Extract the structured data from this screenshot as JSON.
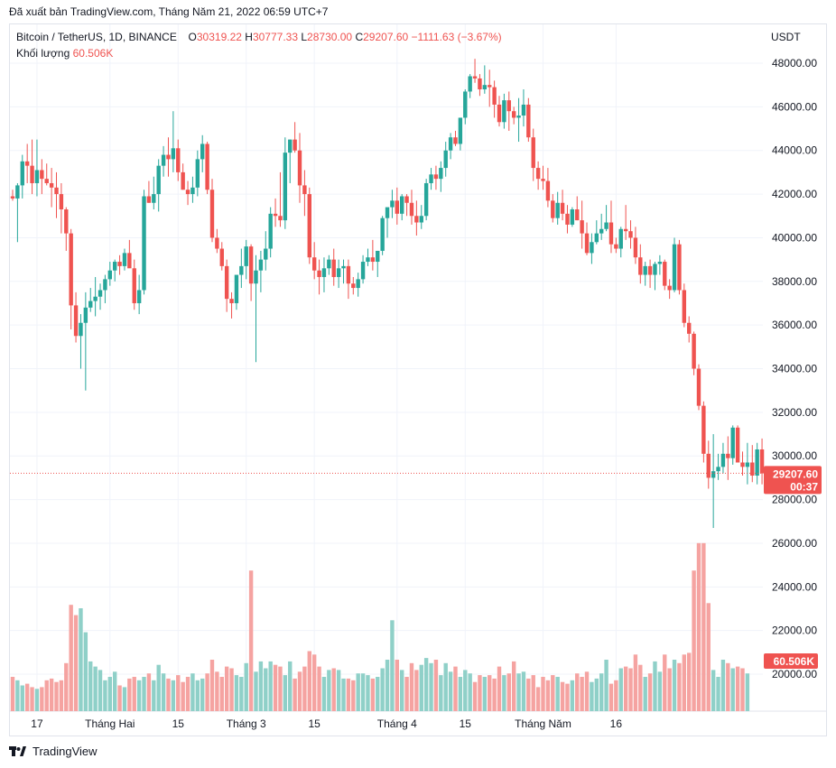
{
  "header": {
    "published": "Đã xuất bản TradingView.com, Tháng Năm 21, 2022 06:59 UTC+7"
  },
  "legend": {
    "symbol": "Bitcoin / TetherUS, 1D, BINANCE",
    "open_label": "O",
    "open": "30319.22",
    "high_label": "H",
    "high": "30777.33",
    "low_label": "L",
    "low": "28730.00",
    "close_label": "C",
    "close": "29207.60",
    "change": "−1111.63 (−3.67%)",
    "volume_label": "Khối lượng",
    "volume": "60.506K"
  },
  "footer": {
    "brand": "TradingView"
  },
  "colors": {
    "up": "#26a69a",
    "down": "#ef5350",
    "vol_up": "#8fd0c8",
    "vol_down": "#f5a3a1",
    "grid": "#f0f3fa",
    "text": "#131722"
  },
  "chart_data": {
    "type": "candlestick",
    "currency": "USDT",
    "price_axis_ticks": [
      "48000.00",
      "46000.00",
      "44000.00",
      "42000.00",
      "40000.00",
      "38000.00",
      "36000.00",
      "34000.00",
      "32000.00",
      "30000.00",
      "28000.00",
      "26000.00",
      "24000.00",
      "22000.00",
      "20000.00"
    ],
    "ylim": [
      19400,
      49600
    ],
    "x_ticks": [
      {
        "label": "17",
        "index": 5
      },
      {
        "label": "Tháng Hai",
        "index": 20
      },
      {
        "label": "15",
        "index": 34
      },
      {
        "label": "Tháng 3",
        "index": 48
      },
      {
        "label": "15",
        "index": 62
      },
      {
        "label": "Tháng 4",
        "index": 79
      },
      {
        "label": "15",
        "index": 93
      },
      {
        "label": "Tháng Năm",
        "index": 109
      },
      {
        "label": "16",
        "index": 124
      }
    ],
    "last_price": {
      "value": "29207.60",
      "countdown": "00:37",
      "y": 29207.6
    },
    "last_volume": {
      "value": "60.506K"
    },
    "ohlc": [
      [
        41900,
        42200,
        41700,
        41800
      ],
      [
        41800,
        42500,
        39800,
        42400
      ],
      [
        42400,
        43800,
        41800,
        43500
      ],
      [
        43500,
        44300,
        42500,
        43300
      ],
      [
        43300,
        44500,
        42000,
        42500
      ],
      [
        42500,
        44500,
        41900,
        43100
      ],
      [
        43100,
        43600,
        42000,
        42700
      ],
      [
        42700,
        43400,
        42400,
        42500
      ],
      [
        42500,
        43200,
        41400,
        42300
      ],
      [
        42300,
        43000,
        40900,
        42000
      ],
      [
        42000,
        42500,
        40200,
        41300
      ],
      [
        41300,
        41400,
        39400,
        40200
      ],
      [
        40200,
        40400,
        35800,
        36900
      ],
      [
        36900,
        37500,
        35200,
        35500
      ],
      [
        35500,
        36500,
        34000,
        36100
      ],
      [
        36100,
        37500,
        33000,
        36800
      ],
      [
        36800,
        37700,
        36600,
        37100
      ],
      [
        37100,
        38200,
        36400,
        37300
      ],
      [
        37300,
        37900,
        36700,
        37600
      ],
      [
        37600,
        38300,
        37000,
        38100
      ],
      [
        38100,
        38900,
        37800,
        38500
      ],
      [
        38500,
        39000,
        38000,
        38900
      ],
      [
        38900,
        39200,
        38300,
        38700
      ],
      [
        38700,
        39500,
        38500,
        39300
      ],
      [
        39300,
        39900,
        38800,
        38600
      ],
      [
        38600,
        39000,
        36700,
        37000
      ],
      [
        37000,
        38300,
        36500,
        37600
      ],
      [
        37600,
        42200,
        37400,
        41900
      ],
      [
        41900,
        42600,
        41600,
        41600
      ],
      [
        41600,
        42800,
        41300,
        42000
      ],
      [
        42000,
        43600,
        41200,
        43300
      ],
      [
        43300,
        44200,
        42800,
        43800
      ],
      [
        43800,
        44600,
        42800,
        43600
      ],
      [
        43600,
        45800,
        43000,
        44100
      ],
      [
        44100,
        44500,
        42600,
        43000
      ],
      [
        43000,
        43400,
        42200,
        42200
      ],
      [
        42200,
        42600,
        41500,
        42000
      ],
      [
        42000,
        42800,
        41600,
        42300
      ],
      [
        42300,
        44000,
        41900,
        43600
      ],
      [
        43600,
        44700,
        43000,
        44300
      ],
      [
        44300,
        44400,
        42000,
        42200
      ],
      [
        42200,
        42700,
        39800,
        40000
      ],
      [
        40000,
        40400,
        39300,
        39500
      ],
      [
        39500,
        39800,
        38500,
        38700
      ],
      [
        38700,
        39000,
        36600,
        37200
      ],
      [
        37200,
        37500,
        36300,
        37000
      ],
      [
        37000,
        38200,
        36700,
        38300
      ],
      [
        38300,
        39500,
        37700,
        38700
      ],
      [
        38700,
        39900,
        38100,
        39600
      ],
      [
        39600,
        39700,
        37100,
        37900
      ],
      [
        37900,
        39200,
        34300,
        38500
      ],
      [
        38500,
        39400,
        37500,
        39000
      ],
      [
        39000,
        40300,
        38500,
        39500
      ],
      [
        39500,
        41400,
        39100,
        41100
      ],
      [
        41100,
        41800,
        40500,
        41000
      ],
      [
        41000,
        43000,
        40500,
        40800
      ],
      [
        40800,
        44600,
        40400,
        43900
      ],
      [
        43900,
        44500,
        42500,
        44500
      ],
      [
        44500,
        45300,
        43900,
        44000
      ],
      [
        44000,
        44800,
        41600,
        42400
      ],
      [
        42400,
        43100,
        41000,
        42000
      ],
      [
        42000,
        42300,
        38800,
        39100
      ],
      [
        39100,
        39800,
        38100,
        38500
      ],
      [
        38500,
        39000,
        37400,
        38200
      ],
      [
        38200,
        39100,
        37500,
        38600
      ],
      [
        38600,
        39200,
        38300,
        39000
      ],
      [
        39000,
        39500,
        37800,
        38200
      ],
      [
        38200,
        39000,
        37700,
        38600
      ],
      [
        38600,
        39000,
        37900,
        38700
      ],
      [
        38700,
        39000,
        37200,
        37900
      ],
      [
        37900,
        38200,
        37400,
        37700
      ],
      [
        37700,
        38400,
        37300,
        38100
      ],
      [
        38100,
        39200,
        37900,
        38900
      ],
      [
        38900,
        39500,
        38700,
        39100
      ],
      [
        39100,
        39900,
        38500,
        38900
      ],
      [
        38900,
        39400,
        38200,
        39400
      ],
      [
        39400,
        41000,
        39200,
        40900
      ],
      [
        40900,
        41300,
        40000,
        41400
      ],
      [
        41400,
        42200,
        40900,
        41700
      ],
      [
        41700,
        42300,
        40600,
        41100
      ],
      [
        41100,
        42000,
        40800,
        41900
      ],
      [
        41900,
        42000,
        41000,
        41600
      ],
      [
        41600,
        42200,
        40600,
        41000
      ],
      [
        41000,
        41700,
        40100,
        40700
      ],
      [
        40700,
        41500,
        40400,
        41000
      ],
      [
        41000,
        42700,
        40800,
        42500
      ],
      [
        42500,
        43200,
        42200,
        42900
      ],
      [
        42900,
        43300,
        42200,
        42700
      ],
      [
        42700,
        43500,
        42100,
        43200
      ],
      [
        43200,
        44400,
        42800,
        44000
      ],
      [
        44000,
        44800,
        43600,
        44600
      ],
      [
        44600,
        44900,
        44200,
        44300
      ],
      [
        44300,
        45500,
        44000,
        45500
      ],
      [
        45500,
        46800,
        45200,
        46700
      ],
      [
        46700,
        47500,
        46400,
        47400
      ],
      [
        47400,
        48200,
        47100,
        47300
      ],
      [
        47300,
        47500,
        46500,
        46800
      ],
      [
        46800,
        47900,
        46600,
        47000
      ],
      [
        47000,
        47700,
        46000,
        46900
      ],
      [
        46900,
        47200,
        45500,
        46100
      ],
      [
        46100,
        46500,
        45100,
        45300
      ],
      [
        45300,
        46600,
        45000,
        46300
      ],
      [
        46300,
        46700,
        44900,
        45800
      ],
      [
        45800,
        46000,
        45200,
        45500
      ],
      [
        45500,
        46400,
        44400,
        45600
      ],
      [
        45600,
        46800,
        45100,
        46100
      ],
      [
        46100,
        46400,
        44400,
        44600
      ],
      [
        44600,
        45000,
        42600,
        43200
      ],
      [
        43200,
        43500,
        42200,
        42700
      ],
      [
        42700,
        43300,
        42200,
        42600
      ],
      [
        42600,
        43200,
        41400,
        41700
      ],
      [
        41700,
        42000,
        40700,
        40900
      ],
      [
        40900,
        42100,
        40600,
        41600
      ],
      [
        41600,
        42200,
        40800,
        41100
      ],
      [
        41100,
        41500,
        40200,
        40600
      ],
      [
        40600,
        41400,
        40500,
        41300
      ],
      [
        41300,
        41900,
        40800,
        40800
      ],
      [
        40800,
        41700,
        39500,
        40200
      ],
      [
        40200,
        40700,
        39200,
        39300
      ],
      [
        39300,
        40200,
        38800,
        39800
      ],
      [
        39800,
        40800,
        39700,
        40200
      ],
      [
        40200,
        41100,
        39900,
        40400
      ],
      [
        40400,
        41500,
        40300,
        40700
      ],
      [
        40700,
        41700,
        39300,
        39700
      ],
      [
        39700,
        40000,
        39300,
        39500
      ],
      [
        39500,
        40500,
        39100,
        40400
      ],
      [
        40400,
        41500,
        39900,
        40300
      ],
      [
        40300,
        40800,
        39500,
        40000
      ],
      [
        40000,
        40500,
        38800,
        39100
      ],
      [
        39100,
        39700,
        37900,
        38300
      ],
      [
        38300,
        38900,
        37800,
        38700
      ],
      [
        38700,
        39000,
        37700,
        38300
      ],
      [
        38300,
        38900,
        37600,
        38800
      ],
      [
        38800,
        39200,
        38300,
        38900
      ],
      [
        38900,
        39000,
        37600,
        37800
      ],
      [
        37800,
        38100,
        37200,
        37600
      ],
      [
        37600,
        40000,
        37500,
        39700
      ],
      [
        39700,
        39900,
        37400,
        37600
      ],
      [
        37600,
        37900,
        35900,
        36100
      ],
      [
        36100,
        36400,
        35200,
        35600
      ],
      [
        35600,
        35700,
        33700,
        34000
      ],
      [
        34000,
        34200,
        32100,
        32300
      ],
      [
        32300,
        32500,
        29700,
        30100
      ],
      [
        30100,
        30700,
        28500,
        29000
      ],
      [
        29000,
        31000,
        26700,
        29300
      ],
      [
        29300,
        30100,
        28900,
        29500
      ],
      [
        29500,
        30600,
        29200,
        30100
      ],
      [
        30100,
        30900,
        28900,
        29900
      ],
      [
        29900,
        31400,
        29600,
        31300
      ],
      [
        31300,
        31400,
        29700,
        29700
      ],
      [
        29700,
        30200,
        29100,
        29500
      ],
      [
        29500,
        30600,
        28700,
        29700
      ],
      [
        29700,
        30500,
        28800,
        29100
      ],
      [
        29100,
        30600,
        28700,
        30300
      ],
      [
        30300,
        30800,
        28700,
        29200
      ]
    ],
    "volume": [
      0.2,
      0.18,
      0.15,
      0.16,
      0.14,
      0.13,
      0.14,
      0.18,
      0.19,
      0.17,
      0.18,
      0.28,
      0.62,
      0.56,
      0.6,
      0.46,
      0.29,
      0.26,
      0.24,
      0.18,
      0.2,
      0.23,
      0.15,
      0.14,
      0.19,
      0.2,
      0.18,
      0.2,
      0.22,
      0.18,
      0.27,
      0.22,
      0.19,
      0.18,
      0.21,
      0.17,
      0.2,
      0.22,
      0.18,
      0.19,
      0.22,
      0.3,
      0.23,
      0.2,
      0.26,
      0.25,
      0.21,
      0.2,
      0.28,
      0.82,
      0.23,
      0.29,
      0.25,
      0.29,
      0.27,
      0.26,
      0.21,
      0.29,
      0.19,
      0.23,
      0.26,
      0.35,
      0.33,
      0.26,
      0.2,
      0.24,
      0.25,
      0.24,
      0.19,
      0.19,
      0.18,
      0.22,
      0.22,
      0.21,
      0.19,
      0.2,
      0.25,
      0.3,
      0.53,
      0.3,
      0.24,
      0.2,
      0.28,
      0.24,
      0.27,
      0.31,
      0.28,
      0.3,
      0.21,
      0.28,
      0.23,
      0.26,
      0.2,
      0.24,
      0.22,
      0.17,
      0.21,
      0.2,
      0.21,
      0.19,
      0.26,
      0.21,
      0.22,
      0.29,
      0.22,
      0.23,
      0.19,
      0.21,
      0.14,
      0.2,
      0.18,
      0.21,
      0.2,
      0.17,
      0.16,
      0.18,
      0.22,
      0.2,
      0.23,
      0.17,
      0.19,
      0.22,
      0.3,
      0.16,
      0.18,
      0.25,
      0.26,
      0.25,
      0.33,
      0.27,
      0.2,
      0.22,
      0.29,
      0.23,
      0.33,
      0.25,
      0.3,
      0.28,
      0.33,
      0.34,
      0.82,
      0.98,
      0.98,
      0.63,
      0.24,
      0.2,
      0.3,
      0.28,
      0.25,
      0.26,
      0.25,
      0.22
    ]
  }
}
